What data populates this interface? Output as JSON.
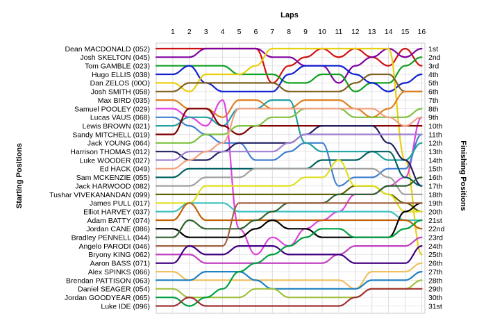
{
  "chart_data": {
    "type": "line",
    "title": "Laps",
    "ylabel_left": "Starting Positions",
    "ylabel_right": "Finishing Positions",
    "laps": [
      1,
      2,
      3,
      4,
      5,
      6,
      7,
      8,
      9,
      10,
      11,
      12,
      13,
      14,
      15,
      16
    ],
    "finishing_positions": [
      "1st",
      "2nd",
      "3rd",
      "4th",
      "5th",
      "6th",
      "7th",
      "8th",
      "9th",
      "10th",
      "11th",
      "12th",
      "13th",
      "14th",
      "15th",
      "16th",
      "17th",
      "18th",
      "19th",
      "20th",
      "21st",
      "22nd",
      "23rd",
      "24th",
      "25th",
      "26th",
      "27th",
      "28th",
      "29th",
      "30th",
      "31st"
    ],
    "grid_vertical": true,
    "grid_horizontal": true,
    "series": [
      {
        "name": "Dean MACDONALD (052)",
        "color": "#d01010",
        "positions": [
          1,
          1,
          1,
          1,
          1,
          1,
          5,
          3,
          2,
          1,
          2,
          1,
          2,
          3,
          1,
          3
        ]
      },
      {
        "name": "Josh SKELTON (045)",
        "color": "#8000a0",
        "positions": [
          2,
          2,
          1,
          1,
          1,
          1,
          2,
          2,
          3,
          3,
          5,
          3,
          2,
          1,
          2,
          1
        ]
      },
      {
        "name": "Tom GAMBLE (023)",
        "color": "#10a020",
        "positions": [
          3,
          3,
          3,
          3,
          4,
          4,
          4,
          5,
          5,
          4,
          4,
          6,
          5,
          5,
          3,
          2
        ]
      },
      {
        "name": "Hugo ELLIS (038)",
        "color": "#1020d0",
        "positions": [
          4,
          3,
          5,
          6,
          6,
          6,
          6,
          4,
          3,
          3,
          3,
          4,
          5,
          6,
          5,
          4
        ]
      },
      {
        "name": "Dan ZELOS (00O)",
        "color": "#e8d010",
        "positions": [
          5,
          6,
          4,
          4,
          4,
          3,
          1,
          1,
          1,
          1,
          1,
          1,
          1,
          1,
          14,
          25
        ]
      },
      {
        "name": "Josh SMITH (058)",
        "color": "#806020",
        "positions": [
          6,
          5,
          5,
          5,
          5,
          5,
          5,
          6,
          6,
          6,
          6,
          5,
          4,
          4,
          6,
          6
        ]
      },
      {
        "name": "Max BIRD (035)",
        "color": "#e08020",
        "positions": [
          7,
          8,
          8,
          9,
          7,
          7,
          8,
          8,
          7,
          7,
          7,
          8,
          9,
          8,
          6,
          6
        ]
      },
      {
        "name": "Samuel POOLEY (029)",
        "color": "#e040e0",
        "positions": [
          8,
          9,
          10,
          7,
          22,
          25,
          23,
          24,
          22,
          21,
          20,
          18,
          18,
          17,
          16,
          9
        ]
      },
      {
        "name": "Lucas VAUS (068)",
        "color": "#4080d0",
        "positions": [
          9,
          10,
          11,
          12,
          12,
          14,
          14,
          13,
          12,
          12,
          17,
          16,
          16,
          15,
          15,
          11
        ]
      },
      {
        "name": "Lewis BROWN (021)",
        "color": "#20a0a0",
        "positions": [
          10,
          9,
          9,
          10,
          8,
          8,
          7,
          7,
          12,
          13,
          13,
          13,
          13,
          14,
          14,
          12
        ]
      },
      {
        "name": "Sandy MITCHELL (019)",
        "color": "#800000",
        "positions": [
          11,
          8,
          8,
          10,
          11,
          10,
          10,
          10,
          10,
          10,
          10,
          10,
          10,
          10,
          10,
          10
        ]
      },
      {
        "name": "Jack YOUNG (064)",
        "color": "#80c040",
        "positions": [
          12,
          12,
          11,
          11,
          10,
          10,
          9,
          9,
          8,
          8,
          8,
          9,
          9,
          9,
          9,
          8
        ]
      },
      {
        "name": "Harrison THOMAS (012)",
        "color": "#202060",
        "positions": [
          13,
          14,
          14,
          13,
          12,
          12,
          12,
          12,
          11,
          10,
          10,
          10,
          10,
          12,
          14,
          17
        ]
      },
      {
        "name": "Luke WOODER (027)",
        "color": "#a080d0",
        "positions": [
          14,
          13,
          13,
          13,
          13,
          13,
          13,
          12,
          11,
          11,
          11,
          11,
          11,
          11,
          11,
          11
        ]
      },
      {
        "name": "Ed HACK (049)",
        "color": "#f0a080",
        "positions": [
          15,
          14,
          13,
          12,
          8,
          8,
          8,
          8,
          8,
          8,
          8,
          8,
          8,
          9,
          10,
          9
        ]
      },
      {
        "name": "Sam MCKENZIE (055)",
        "color": "#006060",
        "positions": [
          16,
          15,
          15,
          15,
          15,
          15,
          15,
          15,
          15,
          14,
          14,
          14,
          13,
          13,
          16,
          17
        ]
      },
      {
        "name": "Jack HARWOOD (082)",
        "color": "#a0a0a0",
        "positions": [
          17,
          17,
          16,
          16,
          16,
          15,
          15,
          15,
          15,
          15,
          15,
          15,
          15,
          16,
          18,
          18
        ]
      },
      {
        "name": "Tushar VIVEKANANDAN (099)",
        "color": "#606000",
        "positions": [
          18,
          18,
          18,
          18,
          18,
          18,
          18,
          18,
          18,
          18,
          18,
          17,
          17,
          18,
          19,
          20
        ]
      },
      {
        "name": "James PULL (017)",
        "color": "#e0e020",
        "positions": [
          19,
          19,
          17,
          17,
          17,
          17,
          17,
          17,
          16,
          16,
          14,
          17,
          17,
          18,
          20,
          20
        ]
      },
      {
        "name": "Elliot HARVEY (037)",
        "color": "#40c0c0",
        "positions": [
          20,
          19,
          19,
          19,
          20,
          20,
          20,
          20,
          20,
          20,
          20,
          20,
          20,
          20,
          21,
          21
        ]
      },
      {
        "name": "Adam BATTY (074)",
        "color": "#c06000",
        "positions": [
          21,
          19,
          21,
          21,
          21,
          21,
          21,
          21,
          21,
          21,
          21,
          21,
          21,
          21,
          21,
          22
        ]
      },
      {
        "name": "Jordan CANE (086)",
        "color": "#000000",
        "positions": [
          22,
          23,
          23,
          23,
          23,
          22,
          21,
          22,
          22,
          23,
          23,
          23,
          23,
          23,
          20,
          19
        ]
      },
      {
        "name": "Bradley PENNELL (044)",
        "color": "#306030",
        "positions": [
          23,
          21,
          22,
          22,
          22,
          21,
          20,
          19,
          19,
          19,
          18,
          18,
          18,
          17,
          17,
          16
        ]
      },
      {
        "name": "Angelo PARODI (046)",
        "color": "#a06040",
        "positions": [
          24,
          24,
          24,
          24,
          19,
          19,
          19,
          19,
          19,
          19,
          19,
          19,
          19,
          19,
          19,
          19
        ]
      },
      {
        "name": "Bryony KING (062)",
        "color": "#c040c0",
        "positions": [
          25,
          25,
          26,
          26,
          26,
          26,
          26,
          26,
          26,
          26,
          25,
          24,
          24,
          24,
          24,
          23
        ]
      },
      {
        "name": "Aaron BASS (071)",
        "color": "#400080",
        "positions": [
          26,
          24,
          25,
          25,
          24,
          24,
          24,
          25,
          25,
          25,
          25,
          26,
          26,
          26,
          26,
          24
        ]
      },
      {
        "name": "Alex SPINKS (066)",
        "color": "#f0c060",
        "positions": [
          27,
          28,
          28,
          28,
          28,
          28,
          28,
          28,
          28,
          28,
          28,
          29,
          27,
          27,
          27,
          26
        ]
      },
      {
        "name": "Brendan PATTISON (063)",
        "color": "#2080c0",
        "positions": [
          28,
          28,
          27,
          27,
          27,
          28,
          29,
          29,
          29,
          29,
          29,
          29,
          28,
          28,
          28,
          27
        ]
      },
      {
        "name": "Daniel SEAGER (054)",
        "color": "#a0c040",
        "positions": [
          29,
          30,
          30,
          30,
          30,
          29,
          29,
          30,
          30,
          30,
          30,
          30,
          29,
          29,
          29,
          28
        ]
      },
      {
        "name": "Jordan GOODYEAR (065)",
        "color": "#00a040",
        "positions": [
          30,
          31,
          30,
          29,
          27,
          26,
          25,
          24,
          23,
          22,
          22,
          23,
          23,
          23,
          22,
          21
        ]
      },
      {
        "name": "Luke IDE (096)",
        "color": "#a03030",
        "positions": [
          31,
          30,
          31,
          31,
          31,
          31,
          31,
          31,
          31,
          31,
          31,
          30,
          29,
          29,
          29,
          29
        ]
      }
    ]
  }
}
